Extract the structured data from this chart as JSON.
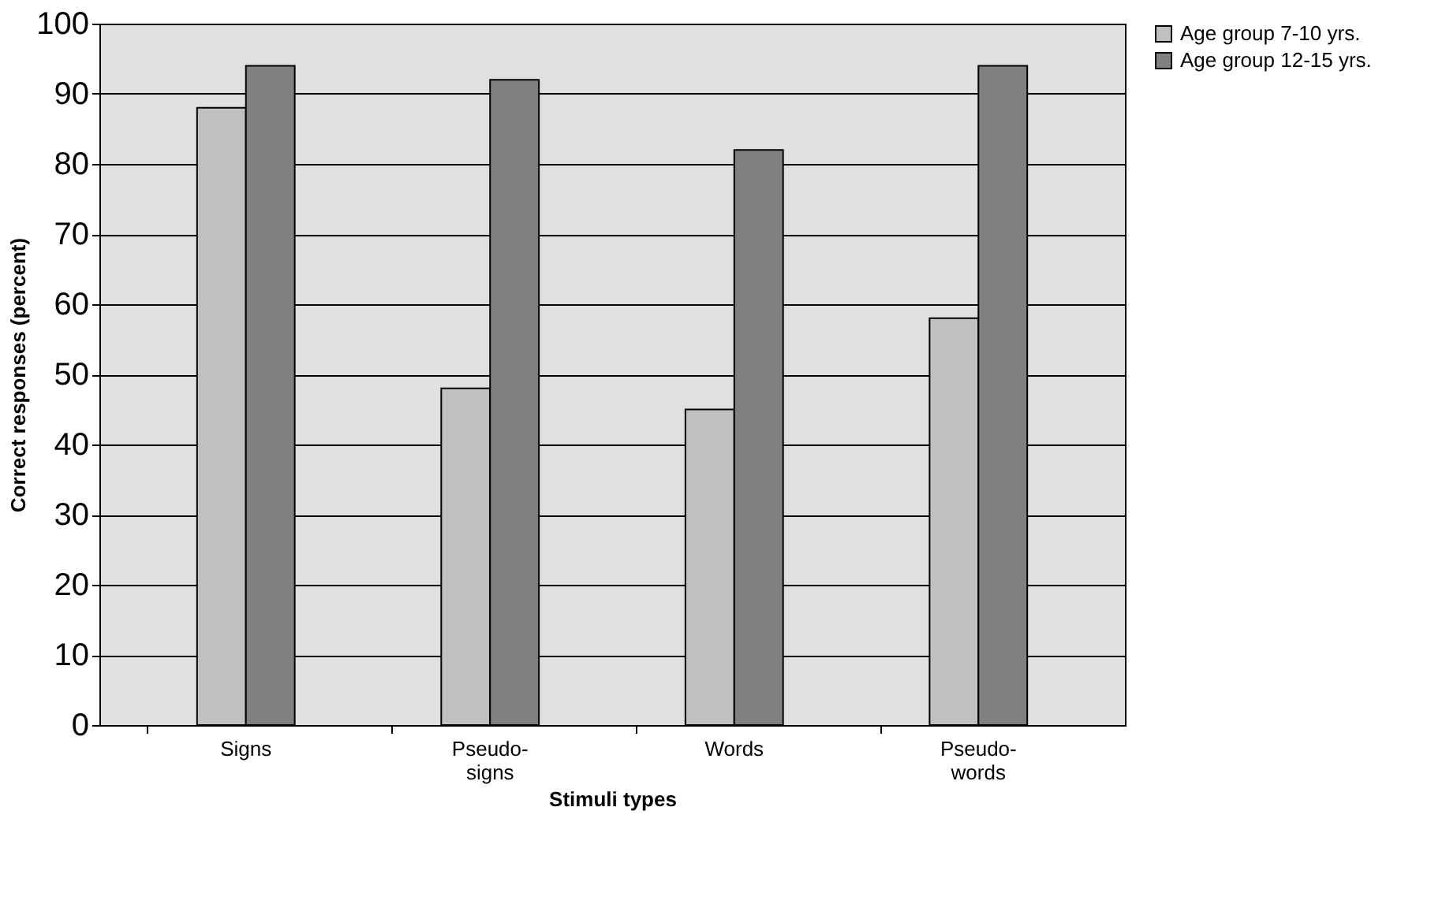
{
  "chart_data": {
    "type": "bar",
    "xlabel": "Stimuli types",
    "ylabel": "Correct responses (percent)",
    "categories": [
      "Signs",
      "Pseudo-signs",
      "Words",
      "Pseudo-words"
    ],
    "series": [
      {
        "name": "Age group 7-10 yrs.",
        "color": "#c0c0c0",
        "values": [
          88,
          48,
          45,
          58
        ]
      },
      {
        "name": "Age group 12-15 yrs.",
        "color": "#808080",
        "values": [
          94,
          92,
          82,
          94
        ]
      }
    ],
    "ylim": [
      0,
      100
    ],
    "yticks": [
      0,
      10,
      20,
      30,
      40,
      50,
      60,
      70,
      80,
      90,
      100
    ],
    "grid": "y",
    "legend": "right"
  }
}
